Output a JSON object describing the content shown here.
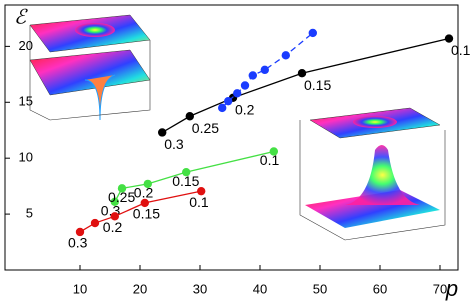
{
  "chart_data": {
    "type": "line",
    "x_label": "p",
    "y_label": "ℰ",
    "xlim": [
      -2.5,
      73
    ],
    "ylim": [
      0,
      23.7
    ],
    "xticks": [
      10,
      20,
      30,
      40,
      50,
      60,
      70
    ],
    "yticks": [
      5,
      10,
      15,
      20
    ],
    "series": [
      {
        "color": "#000000",
        "dashed": false,
        "x": [
          23.7,
          28.3,
          35.5,
          47,
          71.5
        ],
        "values": [
          12.3,
          13.75,
          15.4,
          17.6,
          20.7
        ],
        "point_labels": [
          "0.3",
          "0.25",
          "0.2",
          "0.15",
          "0.1"
        ]
      },
      {
        "color": "#1a3cff",
        "dashed": true,
        "x": [
          33.7,
          34.7,
          36.2,
          37.5,
          38.8,
          40.8,
          44.3,
          48.8
        ],
        "values": [
          14.5,
          15.1,
          15.8,
          16.5,
          17.4,
          17.9,
          19.2,
          21.2
        ]
      },
      {
        "color": "#44e044",
        "dashed": false,
        "x": [
          15.8,
          17,
          21.3,
          27.7,
          42.3
        ],
        "values": [
          6.1,
          7.3,
          7.7,
          8.75,
          10.6
        ],
        "point_labels": [
          "0.3",
          "0.25",
          "0.2",
          "0.15",
          "0.1"
        ]
      },
      {
        "color": "#e01010",
        "dashed": false,
        "x": [
          10,
          12.5,
          15.8,
          20.8,
          30.2
        ],
        "values": [
          3.4,
          4.2,
          4.8,
          6.0,
          7.05
        ],
        "point_labels": [
          "0.3",
          null,
          "0.2",
          "0.15",
          "0.1"
        ]
      }
    ]
  }
}
